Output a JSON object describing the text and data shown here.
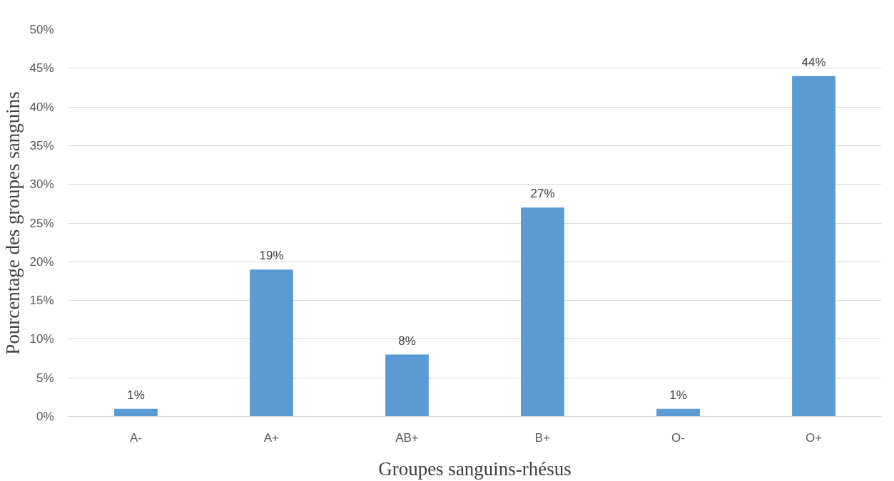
{
  "chart_data": {
    "type": "bar",
    "xlabel": "Groupes sanguins-rhésus",
    "ylabel": "Pourcentage des groupes sanguins",
    "categories": [
      "A-",
      "A+",
      "AB+",
      "B+",
      "O-",
      "O+"
    ],
    "values": [
      1,
      19,
      8,
      27,
      1,
      44
    ],
    "value_labels": [
      "1%",
      "19%",
      "8%",
      "27%",
      "1%",
      "44%"
    ],
    "color": "#5b9bd5",
    "ylim": [
      0,
      50
    ],
    "yticks": [
      {
        "value": 0,
        "label": "0%"
      },
      {
        "value": 5,
        "label": "5%"
      },
      {
        "value": 10,
        "label": "10%"
      },
      {
        "value": 15,
        "label": "15%"
      },
      {
        "value": 20,
        "label": "20%"
      },
      {
        "value": 25,
        "label": "25%"
      },
      {
        "value": 30,
        "label": "30%"
      },
      {
        "value": 35,
        "label": "35%"
      },
      {
        "value": 40,
        "label": "40%"
      },
      {
        "value": 45,
        "label": "45%"
      },
      {
        "value": 50,
        "label": "50%"
      }
    ],
    "grid": "y"
  }
}
